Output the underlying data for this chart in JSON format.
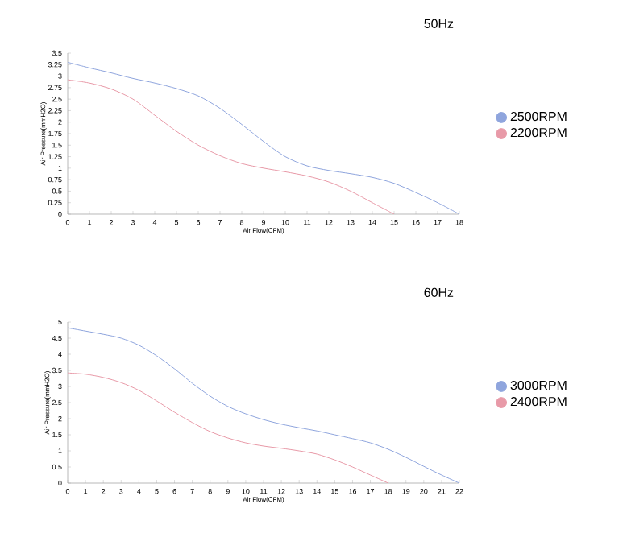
{
  "chart_data": [
    {
      "type": "line",
      "title": "50Hz",
      "xlabel": "Air Flow(CFM)",
      "ylabel": "Air Pressure(mmH2O)",
      "xlim": [
        0,
        18
      ],
      "ylim": [
        0,
        3.5
      ],
      "xticks": [
        0,
        1,
        2,
        3,
        4,
        5,
        6,
        7,
        8,
        9,
        10,
        11,
        12,
        13,
        14,
        15,
        16,
        17,
        18
      ],
      "yticks": [
        0,
        0.25,
        0.5,
        0.75,
        1,
        1.25,
        1.5,
        1.75,
        2,
        2.25,
        2.5,
        2.75,
        3,
        3.25,
        3.5
      ],
      "legend": "right",
      "grid": false,
      "marker": "none",
      "line_style": "solid",
      "x": [
        0,
        1,
        2,
        3,
        4,
        5,
        6,
        7,
        8,
        9,
        10,
        11,
        12,
        13,
        14,
        15,
        16,
        17,
        18
      ],
      "series": [
        {
          "name": "2500RPM",
          "color": "#8fa5dd",
          "values": [
            3.3,
            3.18,
            3.07,
            2.95,
            2.85,
            2.73,
            2.57,
            2.3,
            1.95,
            1.58,
            1.25,
            1.05,
            0.95,
            0.88,
            0.8,
            0.67,
            0.47,
            0.25,
            0
          ]
        },
        {
          "name": "2200RPM",
          "color": "#e89aa8",
          "values": [
            2.92,
            2.85,
            2.72,
            2.5,
            2.15,
            1.8,
            1.5,
            1.27,
            1.1,
            1.0,
            0.92,
            0.83,
            0.7,
            0.5,
            0.25,
            0,
            null,
            null,
            null
          ]
        }
      ]
    },
    {
      "type": "line",
      "title": "60Hz",
      "xlabel": "Air Flow(CFM)",
      "ylabel": "Air Pressure(mmH2O)",
      "xlim": [
        0,
        22
      ],
      "ylim": [
        0,
        5
      ],
      "xticks": [
        0,
        1,
        2,
        3,
        4,
        5,
        6,
        7,
        8,
        9,
        10,
        11,
        12,
        13,
        14,
        15,
        16,
        17,
        18,
        19,
        20,
        21,
        22
      ],
      "yticks": [
        0,
        0.5,
        1,
        1.5,
        2,
        2.5,
        3,
        3.5,
        4,
        4.5,
        5
      ],
      "legend": "right",
      "grid": false,
      "marker": "none",
      "line_style": "solid",
      "x": [
        0,
        1,
        2,
        3,
        4,
        5,
        6,
        7,
        8,
        9,
        10,
        11,
        12,
        13,
        14,
        15,
        16,
        17,
        18,
        19,
        20,
        21,
        22
      ],
      "series": [
        {
          "name": "3000RPM",
          "color": "#8fa5dd",
          "values": [
            4.82,
            4.72,
            4.62,
            4.5,
            4.28,
            3.95,
            3.55,
            3.1,
            2.7,
            2.38,
            2.15,
            1.97,
            1.83,
            1.72,
            1.62,
            1.5,
            1.38,
            1.25,
            1.05,
            0.8,
            0.52,
            0.25,
            0
          ]
        },
        {
          "name": "2400RPM",
          "color": "#e89aa8",
          "values": [
            3.42,
            3.38,
            3.28,
            3.12,
            2.88,
            2.55,
            2.2,
            1.88,
            1.6,
            1.4,
            1.25,
            1.15,
            1.08,
            1.0,
            0.9,
            0.72,
            0.5,
            0.25,
            0,
            null,
            null,
            null,
            null
          ]
        }
      ]
    }
  ]
}
